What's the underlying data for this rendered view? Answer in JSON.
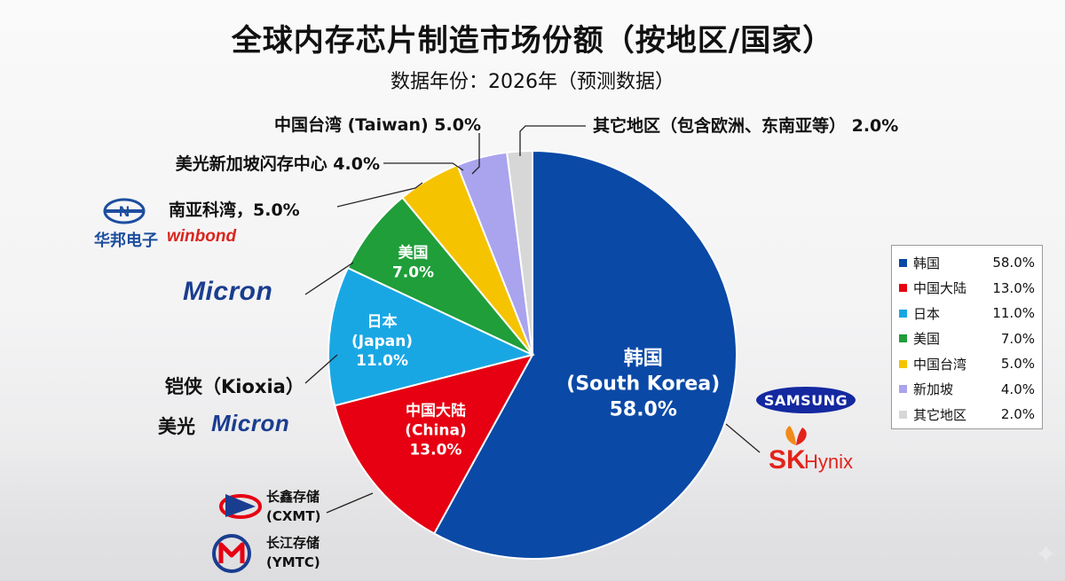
{
  "title": "全球内存芯片制造市场份额（按地区/国家）",
  "subtitle": "数据年份：2026年（预测数据）",
  "chart_data": {
    "type": "pie",
    "title": "全球内存芯片制造市场份额（按地区/国家）",
    "subtitle": "数据年份：2026年（预测数据）",
    "slices": [
      {
        "legend": "韩国",
        "value": 58.0,
        "value_label": "58.0%",
        "color": "#0a49a6",
        "label_lines": [
          "韩国",
          "(South Korea)",
          "58.0%"
        ]
      },
      {
        "legend": "中国大陆",
        "value": 13.0,
        "value_label": "13.0%",
        "color": "#e60012",
        "label_lines": [
          "中国大陆",
          "(China)",
          "13.0%"
        ]
      },
      {
        "legend": "日本",
        "value": 11.0,
        "value_label": "11.0%",
        "color": "#19a7e4",
        "label_lines": [
          "日本",
          "(Japan)",
          "11.0%"
        ]
      },
      {
        "legend": "美国",
        "value": 7.0,
        "value_label": "7.0%",
        "color": "#1f9e3a",
        "label_lines": [
          "美国",
          "7.0%"
        ]
      },
      {
        "legend": "中国台湾",
        "value": 5.0,
        "value_label": "5.0%",
        "color": "#f6c300",
        "outside_label": "中国台湾 (Taiwan) 5.0%"
      },
      {
        "legend": "新加坡",
        "value": 4.0,
        "value_label": "4.0%",
        "color": "#aaa3ee",
        "outside_label": "美光新加坡闪存中心 4.0%"
      },
      {
        "legend": "其它地区",
        "value": 2.0,
        "value_label": "2.0%",
        "color": "#d7d7d7",
        "outside_label": "其它地区（包含欧洲、东南亚等） 2.0%"
      }
    ],
    "start_angle": "12 o'clock, clockwise",
    "legend_position": "right"
  },
  "annotations": {
    "nanya": "南亚科湾，5.0%",
    "kioxia": "铠侠（Kioxia）",
    "meiguang": "美光"
  },
  "logos": {
    "samsung": "SAMSUNG",
    "sk": "SK",
    "hynix": "Hynix",
    "micron": "Micron",
    "winbond": "winbond",
    "huabang": "华邦电子",
    "cxmt_name": "长鑫存储",
    "cxmt_abbr": "(CXMT)",
    "ymtc_name": "长江存储",
    "ymtc_abbr": "(YMTC)"
  }
}
